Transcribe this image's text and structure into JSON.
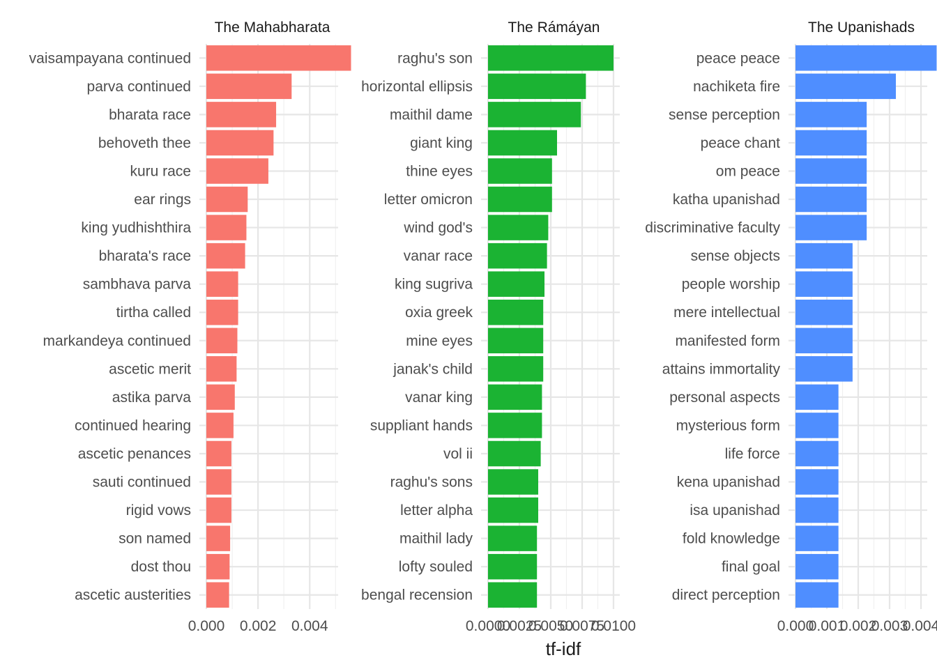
{
  "chart_data": {
    "type": "bar",
    "orientation": "horizontal",
    "xlabel": "tf-idf",
    "ylabel": "",
    "grid": true,
    "legend": "none",
    "facets": [
      {
        "title": "The Mahabharata",
        "color": "#F8766D",
        "xlim": [
          0,
          0.0051
        ],
        "ticks": [
          0,
          0.002,
          0.004
        ],
        "tick_labels": [
          "0.000",
          "0.002",
          "0.004"
        ],
        "categories": [
          "vaisampayana continued",
          "parva continued",
          "bharata race",
          "behoveth thee",
          "kuru race",
          "ear rings",
          "king yudhishthira",
          "bharata's race",
          "sambhava parva",
          "tirtha called",
          "markandeya continued",
          "ascetic merit",
          "astika parva",
          "continued hearing",
          "ascetic penances",
          "sauti continued",
          "rigid vows",
          "son named",
          "dost thou",
          "ascetic austerities"
        ],
        "values": [
          0.0056,
          0.0033,
          0.0027,
          0.0026,
          0.0024,
          0.0016,
          0.00155,
          0.0015,
          0.00123,
          0.00123,
          0.0012,
          0.00117,
          0.0011,
          0.00105,
          0.00097,
          0.00097,
          0.00097,
          0.00092,
          0.0009,
          0.00088
        ]
      },
      {
        "title": "The Rámáyan",
        "color": "#1BB333",
        "xlim": [
          0,
          0.0105
        ],
        "ticks": [
          0,
          0.0025,
          0.005,
          0.0075,
          0.01
        ],
        "tick_labels": [
          "0.0000",
          "0.0025",
          "0.0050",
          "0.0075",
          "0.0100"
        ],
        "categories": [
          "raghu's son",
          "horizontal ellipsis",
          "maithil dame",
          "giant king",
          "thine eyes",
          "letter omicron",
          "wind god's",
          "vanar race",
          "king sugriva",
          "oxia greek",
          "mine eyes",
          "janak's child",
          "vanar king",
          "suppliant hands",
          "vol ii",
          "raghu's sons",
          "letter alpha",
          "maithil lady",
          "lofty souled",
          "bengal recension"
        ],
        "values": [
          0.01,
          0.0078,
          0.0074,
          0.0055,
          0.0051,
          0.0051,
          0.0048,
          0.0047,
          0.0045,
          0.0044,
          0.0044,
          0.0044,
          0.0043,
          0.0043,
          0.0042,
          0.004,
          0.004,
          0.0039,
          0.0039,
          0.0039
        ]
      },
      {
        "title": "The Upanishads",
        "color": "#4F8EFF",
        "xlim": [
          0,
          0.0042
        ],
        "ticks": [
          0,
          0.001,
          0.002,
          0.003,
          0.004
        ],
        "tick_labels": [
          "0.000",
          "0.001",
          "0.002",
          "0.003",
          "0.004"
        ],
        "categories": [
          "peace peace",
          "nachiketa fire",
          "sense perception",
          "peace chant",
          "om peace",
          "katha upanishad",
          "discriminative faculty",
          "sense objects",
          "people worship",
          "mere intellectual",
          "manifested form",
          "attains immortality",
          "personal aspects",
          "mysterious form",
          "life force",
          "kena upanishad",
          "isa upanishad",
          "fold knowledge",
          "final goal",
          "direct perception"
        ],
        "values": [
          0.0045,
          0.0032,
          0.00227,
          0.00227,
          0.00227,
          0.00227,
          0.00227,
          0.00182,
          0.00182,
          0.00182,
          0.00182,
          0.00182,
          0.00137,
          0.00137,
          0.00137,
          0.00137,
          0.00137,
          0.00137,
          0.00137,
          0.00137
        ]
      }
    ]
  }
}
